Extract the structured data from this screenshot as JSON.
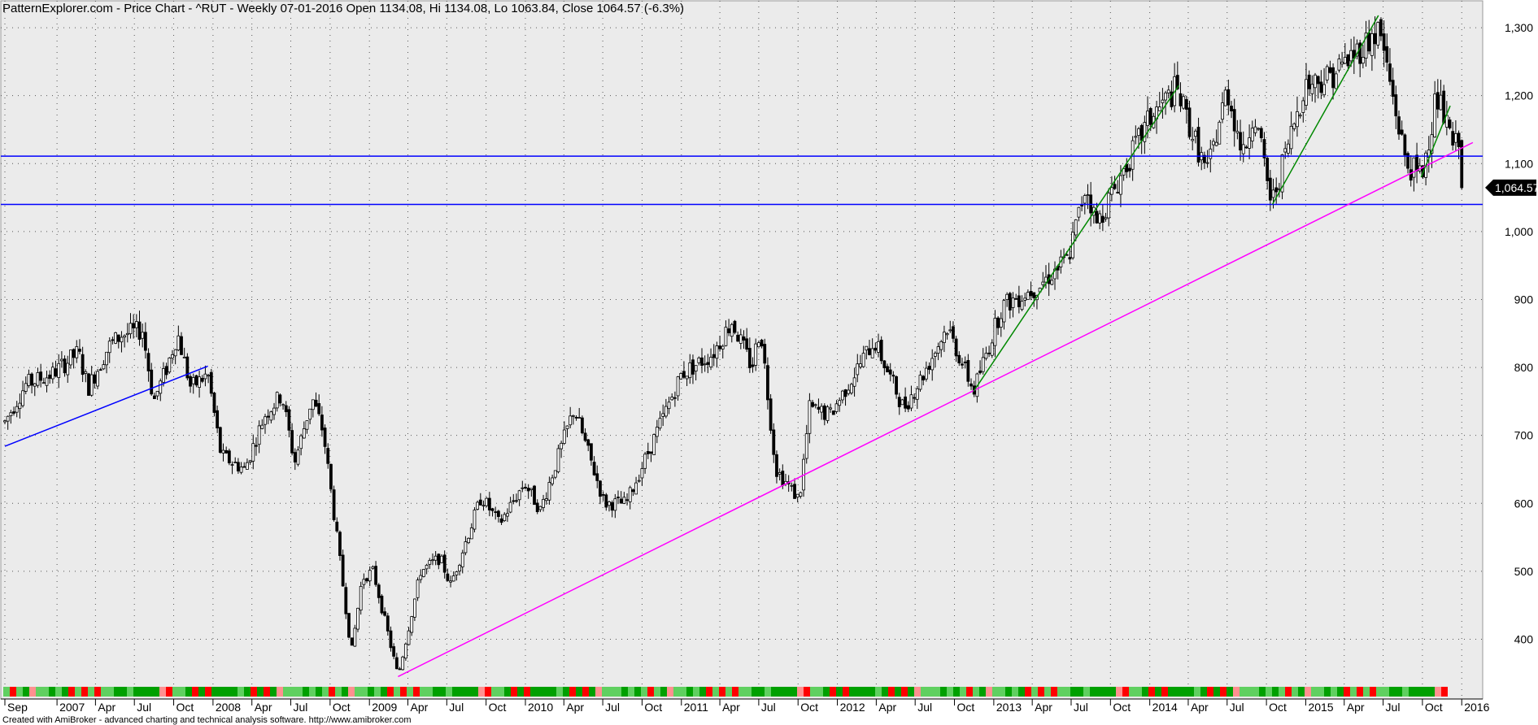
{
  "header": {
    "title": "PatternExplorer.com - Price Chart - ^RUT - Weekly 07-01-2016 Open 1134.08, Hi 1134.08, Lo 1063.84, Close 1064.57 (-6.3%)"
  },
  "footer": {
    "text": "Created with AmiBroker - advanced charting and technical analysis software. http://www.amibroker.com"
  },
  "colors": {
    "plot_bg": "#ebebeb",
    "candle": "#000000",
    "support_line": "#0000ff",
    "long_trendline": "#ff00ff",
    "short_trendlines": "#008800",
    "strip_up": "#00a000",
    "strip_up_light": "#60d060",
    "strip_down": "#ff0000",
    "strip_down_light": "#ff9090"
  },
  "chart_data": {
    "type": "candlestick",
    "ylim": [
      330,
      1330
    ],
    "y_ticks": [
      {
        "value": 1300,
        "label": "1,300"
      },
      {
        "value": 1200,
        "label": "1,200"
      },
      {
        "value": 1100,
        "label": "1,100"
      },
      {
        "value": 1000,
        "label": "1,000"
      },
      {
        "value": 900,
        "label": "900"
      },
      {
        "value": 800,
        "label": "800"
      },
      {
        "value": 700,
        "label": "700"
      },
      {
        "value": 600,
        "label": "600"
      },
      {
        "value": 500,
        "label": "500"
      },
      {
        "value": 400,
        "label": "400"
      }
    ],
    "x_range": [
      "2006-09-01",
      "2016-01-31"
    ],
    "x_ticks": [
      {
        "date": "2006-09-01",
        "label": "Sep"
      },
      {
        "date": "2007-01-01",
        "label": "2007"
      },
      {
        "date": "2007-04-01",
        "label": "Apr"
      },
      {
        "date": "2007-07-01",
        "label": "Jul"
      },
      {
        "date": "2007-10-01",
        "label": "Oct"
      },
      {
        "date": "2008-01-01",
        "label": "2008"
      },
      {
        "date": "2008-04-01",
        "label": "Apr"
      },
      {
        "date": "2008-07-01",
        "label": "Jul"
      },
      {
        "date": "2008-10-01",
        "label": "Oct"
      },
      {
        "date": "2009-01-01",
        "label": "2009"
      },
      {
        "date": "2009-04-01",
        "label": "Apr"
      },
      {
        "date": "2009-07-01",
        "label": "Jul"
      },
      {
        "date": "2009-10-01",
        "label": "Oct"
      },
      {
        "date": "2010-01-01",
        "label": "2010"
      },
      {
        "date": "2010-04-01",
        "label": "Apr"
      },
      {
        "date": "2010-07-01",
        "label": "Jul"
      },
      {
        "date": "2010-10-01",
        "label": "Oct"
      },
      {
        "date": "2011-01-01",
        "label": "2011"
      },
      {
        "date": "2011-04-01",
        "label": "Apr"
      },
      {
        "date": "2011-07-01",
        "label": "Jul"
      },
      {
        "date": "2011-10-01",
        "label": "Oct"
      },
      {
        "date": "2012-01-01",
        "label": "2012"
      },
      {
        "date": "2012-04-01",
        "label": "Apr"
      },
      {
        "date": "2012-07-01",
        "label": "Jul"
      },
      {
        "date": "2012-10-01",
        "label": "Oct"
      },
      {
        "date": "2013-01-01",
        "label": "2013"
      },
      {
        "date": "2013-04-01",
        "label": "Apr"
      },
      {
        "date": "2013-07-01",
        "label": "Jul"
      },
      {
        "date": "2013-10-01",
        "label": "Oct"
      },
      {
        "date": "2014-01-01",
        "label": "2014"
      },
      {
        "date": "2014-04-01",
        "label": "Apr"
      },
      {
        "date": "2014-07-01",
        "label": "Jul"
      },
      {
        "date": "2014-10-01",
        "label": "Oct"
      },
      {
        "date": "2015-01-01",
        "label": "2015"
      },
      {
        "date": "2015-04-01",
        "label": "Apr"
      },
      {
        "date": "2015-07-01",
        "label": "Jul"
      },
      {
        "date": "2015-10-01",
        "label": "Oct"
      },
      {
        "date": "2016-01-01",
        "label": "2016"
      }
    ],
    "last_price": {
      "value": 1064.57,
      "label": "1,064.57"
    },
    "horizontal_lines": [
      1111,
      1040
    ],
    "trendlines": [
      {
        "kind": "blue",
        "from": [
          "2006-09-01",
          684
        ],
        "to": [
          "2007-12-20",
          802
        ]
      },
      {
        "kind": "magenta",
        "from": [
          "2009-03-09",
          345
        ],
        "to": [
          "2016-01-27",
          1131
        ]
      },
      {
        "kind": "green",
        "from": [
          "2012-11-15",
          765
        ],
        "to": [
          "2014-03-10",
          1215
        ]
      },
      {
        "kind": "green",
        "from": [
          "2014-10-15",
          1040
        ],
        "to": [
          "2015-06-20",
          1318
        ]
      },
      {
        "kind": "green",
        "from": [
          "2015-09-28",
          1080
        ],
        "to": [
          "2015-12-05",
          1185
        ]
      }
    ],
    "price_path": [
      [
        "2006-09-01",
        720
      ],
      [
        "2006-10-20",
        775
      ],
      [
        "2006-12-20",
        790
      ],
      [
        "2007-02-20",
        822
      ],
      [
        "2007-03-15",
        770
      ],
      [
        "2007-05-01",
        830
      ],
      [
        "2007-06-01",
        848
      ],
      [
        "2007-07-20",
        855
      ],
      [
        "2007-08-15",
        750
      ],
      [
        "2007-09-15",
        800
      ],
      [
        "2007-10-10",
        850
      ],
      [
        "2007-11-10",
        770
      ],
      [
        "2007-12-20",
        790
      ],
      [
        "2008-01-20",
        670
      ],
      [
        "2008-03-15",
        650
      ],
      [
        "2008-05-01",
        730
      ],
      [
        "2008-06-10",
        760
      ],
      [
        "2008-07-10",
        660
      ],
      [
        "2008-08-20",
        755
      ],
      [
        "2008-09-15",
        705
      ],
      [
        "2008-10-15",
        560
      ],
      [
        "2008-11-20",
        380
      ],
      [
        "2008-12-15",
        490
      ],
      [
        "2009-01-10",
        500
      ],
      [
        "2009-03-09",
        345
      ],
      [
        "2009-05-01",
        500
      ],
      [
        "2009-06-15",
        520
      ],
      [
        "2009-07-10",
        480
      ],
      [
        "2009-09-20",
        610
      ],
      [
        "2009-11-01",
        570
      ],
      [
        "2009-12-30",
        630
      ],
      [
        "2010-02-05",
        590
      ],
      [
        "2010-04-25",
        740
      ],
      [
        "2010-07-05",
        600
      ],
      [
        "2010-08-25",
        600
      ],
      [
        "2010-11-15",
        720
      ],
      [
        "2011-01-01",
        790
      ],
      [
        "2011-03-15",
        820
      ],
      [
        "2011-04-29",
        868
      ],
      [
        "2011-06-15",
        800
      ],
      [
        "2011-07-05",
        860
      ],
      [
        "2011-08-10",
        650
      ],
      [
        "2011-10-04",
        605
      ],
      [
        "2011-10-28",
        740
      ],
      [
        "2011-12-15",
        730
      ],
      [
        "2012-03-27",
        840
      ],
      [
        "2012-06-04",
        740
      ],
      [
        "2012-07-20",
        790
      ],
      [
        "2012-09-14",
        860
      ],
      [
        "2012-11-15",
        765
      ],
      [
        "2013-01-20",
        890
      ],
      [
        "2013-04-15",
        920
      ],
      [
        "2013-06-24",
        960
      ],
      [
        "2013-08-05",
        1070
      ],
      [
        "2013-08-29",
        1010
      ],
      [
        "2013-12-31",
        1165
      ],
      [
        "2014-03-04",
        1210
      ],
      [
        "2014-05-15",
        1085
      ],
      [
        "2014-07-01",
        1210
      ],
      [
        "2014-08-08",
        1110
      ],
      [
        "2014-09-01",
        1180
      ],
      [
        "2014-10-13",
        1040
      ],
      [
        "2014-12-29",
        1215
      ],
      [
        "2015-03-01",
        1230
      ],
      [
        "2015-06-23",
        1296
      ],
      [
        "2015-08-24",
        1100
      ],
      [
        "2015-09-29",
        1080
      ],
      [
        "2015-11-03",
        1200
      ],
      [
        "2015-12-15",
        1120
      ],
      [
        "2015-12-30",
        1150
      ],
      [
        "2016-01-07",
        1064.57
      ]
    ],
    "strip_pattern": [
      "u2",
      "u1",
      "u2",
      "u1",
      "u1",
      "d1",
      "u1",
      "u2",
      "u1",
      "d1",
      "u2",
      "d2",
      "u1",
      "u2",
      "u1",
      "u1",
      "d1",
      "u2",
      "u1",
      "d1",
      "d2",
      "u2",
      "u1",
      "d1",
      "u1",
      "u2",
      "u2",
      "d1"
    ]
  }
}
